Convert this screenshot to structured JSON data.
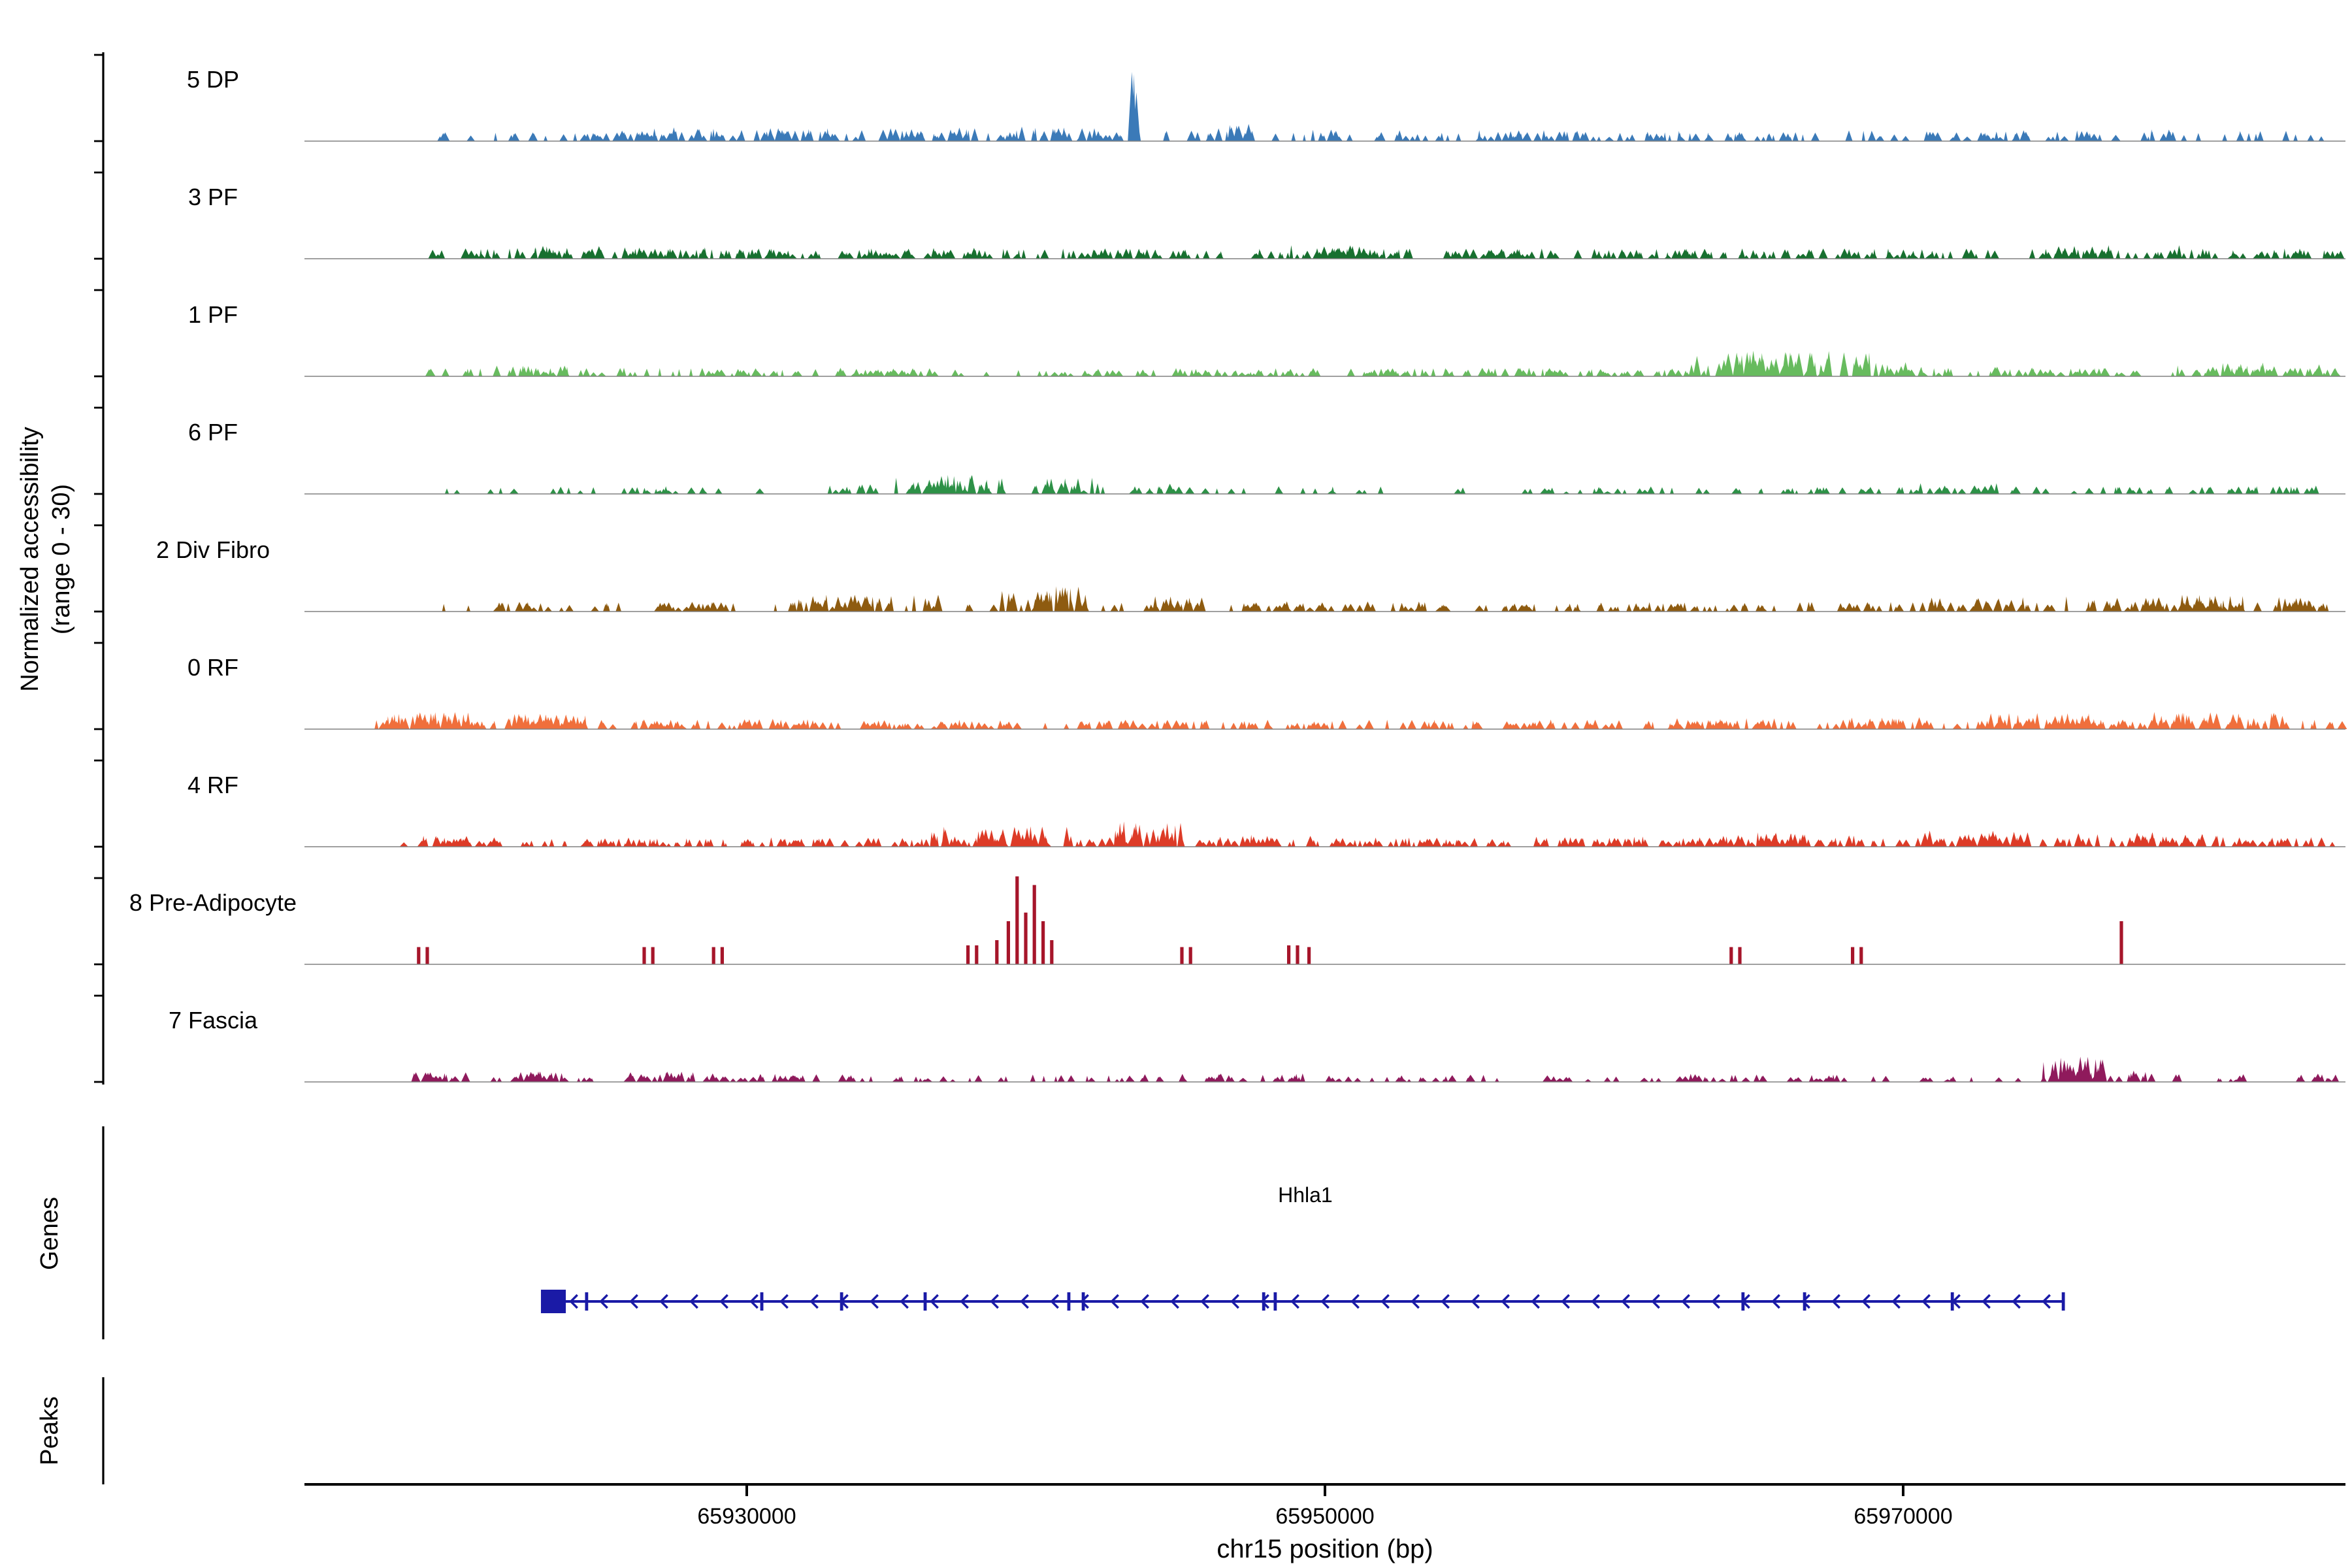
{
  "y_axis": {
    "label_line1": "Normalized accessibility",
    "label_line2": "(range 0 - 30)",
    "y_range": [
      0,
      30
    ]
  },
  "sections": {
    "genes_label": "Genes",
    "peaks_label": "Peaks"
  },
  "x_axis": {
    "title": "chr15 position (bp)",
    "ticks": [
      {
        "bp": 65930000,
        "label": "65930000"
      },
      {
        "bp": 65950000,
        "label": "65950000"
      },
      {
        "bp": 65970000,
        "label": "65970000"
      }
    ]
  },
  "chart_data": {
    "type": "area",
    "title": "",
    "region": {
      "chrom": "chr15",
      "start": 65914700,
      "end": 65985300
    },
    "y_range": [
      0,
      30
    ],
    "tracks": [
      {
        "name": "5 DP",
        "color": "#3b7ab8",
        "seed": 101,
        "uniform": {
          "from": 65918500,
          "to": 65985000,
          "n": 190,
          "h_min": 0.05,
          "h_max": 0.13
        },
        "clusters": [
          {
            "center": 65926500,
            "spread": 3500,
            "n": 30,
            "h": 0.17
          },
          {
            "center": 65931500,
            "spread": 2000,
            "n": 18,
            "h": 0.15
          },
          {
            "center": 65936500,
            "spread": 2500,
            "n": 20,
            "h": 0.16
          },
          {
            "center": 65941000,
            "spread": 2500,
            "n": 22,
            "h": 0.17
          },
          {
            "center": 65943400,
            "spread": 150,
            "n": 7,
            "h": 0.82
          },
          {
            "center": 65946500,
            "spread": 1200,
            "n": 10,
            "h": 0.2
          },
          {
            "center": 65950000,
            "spread": 1500,
            "n": 10,
            "h": 0.15
          },
          {
            "center": 65957500,
            "spread": 4000,
            "n": 18,
            "h": 0.12
          },
          {
            "center": 65964500,
            "spread": 3000,
            "n": 15,
            "h": 0.12
          },
          {
            "center": 65972000,
            "spread": 3000,
            "n": 12,
            "h": 0.12
          },
          {
            "center": 65977500,
            "spread": 3000,
            "n": 15,
            "h": 0.14
          }
        ],
        "spikes": []
      },
      {
        "name": "3 PF",
        "color": "#17702f",
        "seed": 202,
        "uniform": {
          "from": 65918800,
          "to": 65985200,
          "n": 280,
          "h_min": 0.05,
          "h_max": 0.12
        },
        "clusters": [
          {
            "center": 65924000,
            "spread": 3500,
            "n": 35,
            "h": 0.15
          },
          {
            "center": 65930000,
            "spread": 2000,
            "n": 18,
            "h": 0.13
          },
          {
            "center": 65936000,
            "spread": 4000,
            "n": 30,
            "h": 0.13
          },
          {
            "center": 65943000,
            "spread": 2500,
            "n": 18,
            "h": 0.12
          },
          {
            "center": 65950700,
            "spread": 2500,
            "n": 25,
            "h": 0.16
          },
          {
            "center": 65956000,
            "spread": 2000,
            "n": 12,
            "h": 0.1
          },
          {
            "center": 65963000,
            "spread": 3000,
            "n": 15,
            "h": 0.1
          },
          {
            "center": 65969500,
            "spread": 2500,
            "n": 12,
            "h": 0.1
          },
          {
            "center": 65976800,
            "spread": 3500,
            "n": 30,
            "h": 0.16
          },
          {
            "center": 65982500,
            "spread": 2000,
            "n": 12,
            "h": 0.1
          }
        ],
        "spikes": []
      },
      {
        "name": "1 PF",
        "color": "#67bb5e",
        "seed": 303,
        "uniform": {
          "from": 65919000,
          "to": 65985200,
          "n": 240,
          "h_min": 0.04,
          "h_max": 0.1
        },
        "clusters": [
          {
            "center": 65922800,
            "spread": 2500,
            "n": 22,
            "h": 0.13
          },
          {
            "center": 65929500,
            "spread": 2000,
            "n": 12,
            "h": 0.09
          },
          {
            "center": 65934500,
            "spread": 3500,
            "n": 20,
            "h": 0.09
          },
          {
            "center": 65941000,
            "spread": 2000,
            "n": 10,
            "h": 0.08
          },
          {
            "center": 65947500,
            "spread": 2500,
            "n": 12,
            "h": 0.08
          },
          {
            "center": 65952500,
            "spread": 2500,
            "n": 14,
            "h": 0.1
          },
          {
            "center": 65960000,
            "spread": 2500,
            "n": 14,
            "h": 0.1
          },
          {
            "center": 65965800,
            "spread": 3200,
            "n": 55,
            "h": 0.3
          },
          {
            "center": 65969800,
            "spread": 1500,
            "n": 15,
            "h": 0.18
          },
          {
            "center": 65975500,
            "spread": 2500,
            "n": 15,
            "h": 0.12
          },
          {
            "center": 65981500,
            "spread": 3000,
            "n": 30,
            "h": 0.16
          }
        ],
        "spikes": []
      },
      {
        "name": "6 PF",
        "color": "#2d9147",
        "seed": 404,
        "uniform": {
          "from": 65919000,
          "to": 65985000,
          "n": 110,
          "h_min": 0.04,
          "h_max": 0.09
        },
        "clusters": [
          {
            "center": 65927000,
            "spread": 2000,
            "n": 10,
            "h": 0.09
          },
          {
            "center": 65933500,
            "spread": 1200,
            "n": 10,
            "h": 0.12
          },
          {
            "center": 65936800,
            "spread": 2200,
            "n": 35,
            "h": 0.22
          },
          {
            "center": 65940800,
            "spread": 1500,
            "n": 18,
            "h": 0.2
          },
          {
            "center": 65944500,
            "spread": 1000,
            "n": 8,
            "h": 0.12
          },
          {
            "center": 65959500,
            "spread": 3000,
            "n": 10,
            "h": 0.07
          },
          {
            "center": 65966000,
            "spread": 2000,
            "n": 8,
            "h": 0.08
          },
          {
            "center": 65971800,
            "spread": 2000,
            "n": 12,
            "h": 0.13
          },
          {
            "center": 65977000,
            "spread": 1500,
            "n": 8,
            "h": 0.09
          },
          {
            "center": 65982800,
            "spread": 1800,
            "n": 10,
            "h": 0.1
          }
        ],
        "spikes": []
      },
      {
        "name": "2 Div Fibro",
        "color": "#8e5b10",
        "seed": 505,
        "uniform": {
          "from": 65918800,
          "to": 65985200,
          "n": 170,
          "h_min": 0.05,
          "h_max": 0.11
        },
        "clusters": [
          {
            "center": 65922500,
            "spread": 1800,
            "n": 12,
            "h": 0.12
          },
          {
            "center": 65927500,
            "spread": 1500,
            "n": 10,
            "h": 0.12
          },
          {
            "center": 65933800,
            "spread": 3200,
            "n": 35,
            "h": 0.2
          },
          {
            "center": 65940200,
            "spread": 1800,
            "n": 28,
            "h": 0.3
          },
          {
            "center": 65944800,
            "spread": 1500,
            "n": 14,
            "h": 0.18
          },
          {
            "center": 65948500,
            "spread": 1500,
            "n": 10,
            "h": 0.12
          },
          {
            "center": 65952500,
            "spread": 2000,
            "n": 12,
            "h": 0.12
          },
          {
            "center": 65957500,
            "spread": 2000,
            "n": 10,
            "h": 0.1
          },
          {
            "center": 65962500,
            "spread": 2500,
            "n": 12,
            "h": 0.1
          },
          {
            "center": 65968000,
            "spread": 2000,
            "n": 12,
            "h": 0.12
          },
          {
            "center": 65972500,
            "spread": 2500,
            "n": 22,
            "h": 0.17
          },
          {
            "center": 65978800,
            "spread": 3200,
            "n": 35,
            "h": 0.2
          },
          {
            "center": 65983800,
            "spread": 1500,
            "n": 15,
            "h": 0.17
          }
        ],
        "spikes": []
      },
      {
        "name": "0 RF",
        "color": "#f06f3c",
        "seed": 606,
        "uniform": {
          "from": 65917200,
          "to": 65985200,
          "n": 260,
          "h_min": 0.05,
          "h_max": 0.11
        },
        "clusters": [
          {
            "center": 65918800,
            "spread": 2000,
            "n": 45,
            "h": 0.2
          },
          {
            "center": 65922800,
            "spread": 2200,
            "n": 35,
            "h": 0.18
          },
          {
            "center": 65927500,
            "spread": 1500,
            "n": 15,
            "h": 0.12
          },
          {
            "center": 65931500,
            "spread": 2500,
            "n": 20,
            "h": 0.12
          },
          {
            "center": 65937500,
            "spread": 2500,
            "n": 15,
            "h": 0.1
          },
          {
            "center": 65943500,
            "spread": 3000,
            "n": 20,
            "h": 0.11
          },
          {
            "center": 65949500,
            "spread": 2000,
            "n": 12,
            "h": 0.1
          },
          {
            "center": 65956500,
            "spread": 3000,
            "n": 14,
            "h": 0.09
          },
          {
            "center": 65963500,
            "spread": 3000,
            "n": 25,
            "h": 0.13
          },
          {
            "center": 65969500,
            "spread": 2500,
            "n": 25,
            "h": 0.14
          },
          {
            "center": 65975500,
            "spread": 3000,
            "n": 40,
            "h": 0.2
          },
          {
            "center": 65981000,
            "spread": 3000,
            "n": 40,
            "h": 0.2
          }
        ],
        "spikes": []
      },
      {
        "name": "4 RF",
        "color": "#dd3b27",
        "seed": 707,
        "uniform": {
          "from": 65918500,
          "to": 65985200,
          "n": 260,
          "h_min": 0.05,
          "h_max": 0.11
        },
        "clusters": [
          {
            "center": 65920000,
            "spread": 2500,
            "n": 25,
            "h": 0.13
          },
          {
            "center": 65925500,
            "spread": 2000,
            "n": 15,
            "h": 0.1
          },
          {
            "center": 65931000,
            "spread": 2500,
            "n": 15,
            "h": 0.1
          },
          {
            "center": 65938800,
            "spread": 2800,
            "n": 40,
            "h": 0.24
          },
          {
            "center": 65944000,
            "spread": 1800,
            "n": 25,
            "h": 0.3
          },
          {
            "center": 65948000,
            "spread": 2200,
            "n": 20,
            "h": 0.14
          },
          {
            "center": 65953500,
            "spread": 2500,
            "n": 15,
            "h": 0.1
          },
          {
            "center": 65959500,
            "spread": 3000,
            "n": 20,
            "h": 0.12
          },
          {
            "center": 65966000,
            "spread": 2800,
            "n": 30,
            "h": 0.17
          },
          {
            "center": 65972500,
            "spread": 2800,
            "n": 35,
            "h": 0.19
          },
          {
            "center": 65978500,
            "spread": 3200,
            "n": 35,
            "h": 0.17
          },
          {
            "center": 65983500,
            "spread": 1500,
            "n": 12,
            "h": 0.12
          }
        ],
        "spikes": []
      },
      {
        "name": "8 Pre-Adipocyte",
        "color": "#a6152a",
        "seed": 808,
        "uniform": {
          "from": 65919000,
          "to": 65985000,
          "n": 0,
          "h_min": 0,
          "h_max": 0
        },
        "clusters": [],
        "spikes": [
          {
            "bp": 65918650,
            "h": 0.2
          },
          {
            "bp": 65918950,
            "h": 0.2
          },
          {
            "bp": 65926450,
            "h": 0.2
          },
          {
            "bp": 65926750,
            "h": 0.2
          },
          {
            "bp": 65928850,
            "h": 0.2
          },
          {
            "bp": 65929150,
            "h": 0.2
          },
          {
            "bp": 65937650,
            "h": 0.22
          },
          {
            "bp": 65937950,
            "h": 0.22
          },
          {
            "bp": 65938650,
            "h": 0.28
          },
          {
            "bp": 65939050,
            "h": 0.5
          },
          {
            "bp": 65939350,
            "h": 1.02
          },
          {
            "bp": 65939650,
            "h": 0.6
          },
          {
            "bp": 65939950,
            "h": 0.92
          },
          {
            "bp": 65940250,
            "h": 0.5
          },
          {
            "bp": 65940550,
            "h": 0.28
          },
          {
            "bp": 65945050,
            "h": 0.2
          },
          {
            "bp": 65945350,
            "h": 0.2
          },
          {
            "bp": 65948750,
            "h": 0.22
          },
          {
            "bp": 65949050,
            "h": 0.22
          },
          {
            "bp": 65949450,
            "h": 0.2
          },
          {
            "bp": 65964050,
            "h": 0.2
          },
          {
            "bp": 65964350,
            "h": 0.2
          },
          {
            "bp": 65968250,
            "h": 0.2
          },
          {
            "bp": 65968550,
            "h": 0.2
          },
          {
            "bp": 65977550,
            "h": 0.5
          }
        ]
      },
      {
        "name": "7 Fascia",
        "color": "#8f1a5c",
        "seed": 909,
        "uniform": {
          "from": 65918800,
          "to": 65985200,
          "n": 130,
          "h_min": 0.04,
          "h_max": 0.09
        },
        "clusters": [
          {
            "center": 65919500,
            "spread": 1500,
            "n": 18,
            "h": 0.12
          },
          {
            "center": 65922800,
            "spread": 2200,
            "n": 22,
            "h": 0.13
          },
          {
            "center": 65927300,
            "spread": 2200,
            "n": 20,
            "h": 0.12
          },
          {
            "center": 65931300,
            "spread": 1200,
            "n": 12,
            "h": 0.11
          },
          {
            "center": 65936300,
            "spread": 1800,
            "n": 8,
            "h": 0.07
          },
          {
            "center": 65943000,
            "spread": 1200,
            "n": 6,
            "h": 0.08
          },
          {
            "center": 65946000,
            "spread": 1500,
            "n": 8,
            "h": 0.1
          },
          {
            "center": 65949000,
            "spread": 1800,
            "n": 10,
            "h": 0.1
          },
          {
            "center": 65953500,
            "spread": 1200,
            "n": 6,
            "h": 0.06
          },
          {
            "center": 65958000,
            "spread": 1500,
            "n": 6,
            "h": 0.06
          },
          {
            "center": 65962800,
            "spread": 1800,
            "n": 10,
            "h": 0.1
          },
          {
            "center": 65967300,
            "spread": 1200,
            "n": 8,
            "h": 0.09
          },
          {
            "center": 65971500,
            "spread": 1200,
            "n": 6,
            "h": 0.08
          },
          {
            "center": 65975900,
            "spread": 1300,
            "n": 26,
            "h": 0.3
          },
          {
            "center": 65978000,
            "spread": 800,
            "n": 8,
            "h": 0.14
          },
          {
            "center": 65981300,
            "spread": 1200,
            "n": 6,
            "h": 0.08
          },
          {
            "center": 65984300,
            "spread": 900,
            "n": 6,
            "h": 0.1
          }
        ],
        "spikes": []
      }
    ],
    "gene": {
      "name": "Hhla1",
      "strand": "-",
      "color": "#1a1aa6",
      "line_start": 65923100,
      "line_end": 65975540,
      "box": {
        "start": 65922880,
        "end": 65923740
      },
      "exon_ticks": [
        65924460,
        65930520,
        65933280,
        65936170,
        65941140,
        65941640,
        65947880,
        65948280,
        65964460,
        65966590,
        65971700,
        65975540
      ]
    },
    "peaks": {
      "items": []
    }
  }
}
